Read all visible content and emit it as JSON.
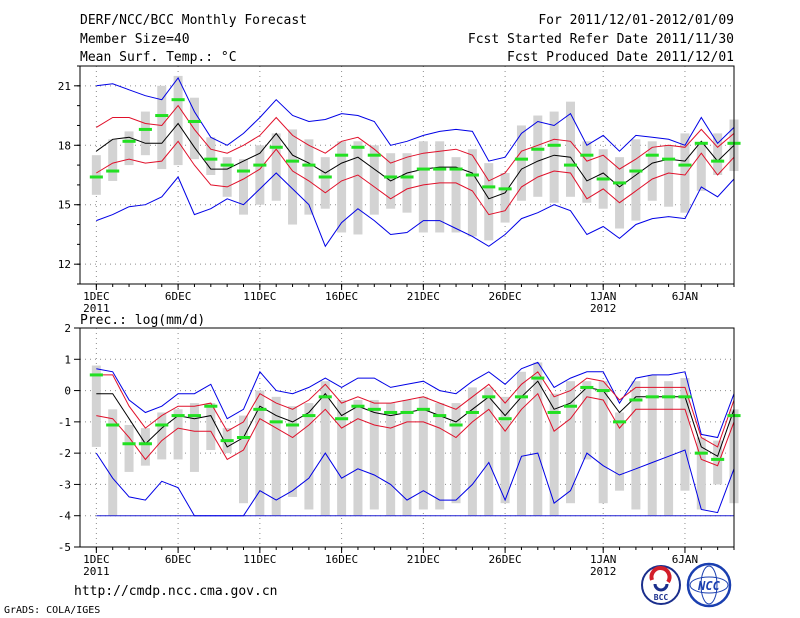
{
  "header": {
    "title": "DERF/NCC/BCC Monthly Forecast",
    "member_size": "Member Size=40",
    "variable": "Mean Surf. Temp.: °C",
    "forecast_period": "For 2011/12/01-2012/01/09",
    "fcst_started": "Fcst Started Refer Date 2011/11/30",
    "fcst_produced": "Fcst Produced Date 2011/12/01"
  },
  "footer": {
    "url": "http://cmdp.ncc.cma.gov.cn",
    "grads_credit": "GrADS: COLA/IGES",
    "logo_bcc_label": "BCC",
    "logo_ncc_label": "NCC"
  },
  "colors": {
    "box": "#d3d3d3",
    "median": "#22e022",
    "mean": "#000000",
    "std_band": "#e0102a",
    "envelope": "#0000e6",
    "grid": "#8c8c8c",
    "floor": "#1e1ed2"
  },
  "chart_data": [
    {
      "id": "temperature",
      "type": "line",
      "ylabel": "Mean Surf. Temp.: °C",
      "ylim": [
        11,
        22
      ],
      "yticks": [
        12,
        15,
        18,
        21
      ],
      "xlim": [
        0,
        40
      ],
      "xticks": [
        {
          "x": 1,
          "label": "1DEC",
          "sublabel": "2011"
        },
        {
          "x": 6,
          "label": "6DEC",
          "sublabel": ""
        },
        {
          "x": 11,
          "label": "11DEC",
          "sublabel": ""
        },
        {
          "x": 16,
          "label": "16DEC",
          "sublabel": ""
        },
        {
          "x": 21,
          "label": "21DEC",
          "sublabel": ""
        },
        {
          "x": 26,
          "label": "26DEC",
          "sublabel": ""
        },
        {
          "x": 32,
          "label": "1JAN",
          "sublabel": "2012"
        },
        {
          "x": 37,
          "label": "6JAN",
          "sublabel": ""
        }
      ],
      "grid": true,
      "days": [
        1,
        2,
        3,
        4,
        5,
        6,
        7,
        8,
        9,
        10,
        11,
        12,
        13,
        14,
        15,
        16,
        17,
        18,
        19,
        20,
        21,
        22,
        23,
        24,
        25,
        26,
        27,
        28,
        29,
        30,
        31,
        32,
        33,
        34,
        35,
        36,
        37,
        38,
        39,
        40
      ],
      "box_low": [
        15.5,
        16.2,
        17.0,
        17.5,
        16.8,
        17.0,
        17.3,
        16.5,
        15.4,
        14.5,
        15.0,
        15.2,
        14.0,
        14.5,
        14.8,
        13.6,
        13.5,
        14.5,
        14.8,
        14.6,
        13.6,
        13.6,
        13.6,
        13.4,
        13.2,
        14.1,
        15.2,
        15.4,
        15.1,
        15.4,
        15.1,
        14.8,
        13.8,
        14.2,
        15.2,
        14.9,
        14.6,
        15.7,
        16.5,
        16.7
      ],
      "box_high": [
        17.5,
        18.3,
        18.7,
        19.7,
        21.0,
        21.5,
        20.4,
        18.4,
        17.4,
        17.3,
        18.0,
        18.6,
        18.8,
        18.3,
        17.4,
        18.2,
        18.2,
        18.0,
        17.6,
        17.6,
        18.2,
        18.2,
        17.4,
        17.8,
        17.1,
        16.6,
        19.0,
        19.5,
        19.7,
        20.2,
        18.2,
        17.8,
        17.4,
        18.3,
        18.2,
        18.0,
        18.6,
        18.1,
        18.6,
        19.3
      ],
      "median": [
        16.4,
        16.7,
        18.2,
        18.8,
        19.5,
        20.3,
        19.2,
        17.3,
        17.0,
        16.7,
        17.0,
        17.9,
        17.2,
        17.0,
        16.4,
        17.5,
        17.9,
        17.5,
        16.4,
        16.4,
        16.8,
        16.8,
        16.8,
        16.5,
        15.9,
        15.8,
        17.3,
        17.8,
        18.0,
        17.0,
        17.5,
        16.3,
        16.1,
        16.7,
        17.5,
        17.3,
        17.0,
        18.1,
        17.2,
        18.1
      ],
      "mean": [
        17.7,
        18.3,
        18.4,
        18.1,
        18.1,
        19.1,
        17.9,
        16.8,
        16.8,
        17.2,
        17.6,
        18.6,
        17.5,
        17.1,
        16.6,
        17.1,
        17.4,
        16.8,
        16.2,
        16.6,
        16.8,
        16.9,
        16.9,
        16.6,
        15.3,
        15.6,
        16.8,
        17.2,
        17.5,
        17.4,
        16.2,
        16.6,
        15.9,
        16.5,
        17.1,
        17.3,
        17.2,
        18.2,
        17.2,
        18.0
      ],
      "std_high": [
        18.9,
        19.4,
        19.4,
        19.1,
        19.0,
        20.0,
        18.8,
        17.8,
        17.6,
        18.0,
        18.5,
        19.4,
        18.5,
        18.0,
        17.6,
        18.2,
        18.4,
        17.8,
        17.1,
        17.4,
        17.6,
        17.7,
        17.8,
        17.5,
        16.2,
        16.6,
        17.7,
        18.0,
        18.3,
        18.2,
        17.2,
        17.5,
        16.8,
        17.3,
        17.9,
        18.0,
        17.9,
        18.8,
        17.9,
        18.6
      ],
      "std_low": [
        16.6,
        17.1,
        17.3,
        17.1,
        17.2,
        18.2,
        17.0,
        16.0,
        15.9,
        16.3,
        16.8,
        17.8,
        16.7,
        16.2,
        15.6,
        16.2,
        16.5,
        15.9,
        15.3,
        15.8,
        16.0,
        16.1,
        16.1,
        15.7,
        14.5,
        14.7,
        15.9,
        16.4,
        16.7,
        16.6,
        15.3,
        15.8,
        15.1,
        15.7,
        16.3,
        16.6,
        16.5,
        17.6,
        16.5,
        17.4
      ],
      "env_high": [
        21.0,
        21.1,
        20.8,
        20.5,
        20.3,
        21.4,
        19.7,
        18.4,
        18.0,
        18.6,
        19.4,
        20.3,
        19.5,
        19.2,
        19.3,
        19.6,
        19.5,
        19.2,
        18.0,
        18.2,
        18.5,
        18.7,
        18.8,
        18.7,
        17.2,
        17.4,
        18.6,
        19.2,
        19.0,
        19.6,
        18.0,
        18.5,
        17.7,
        18.5,
        18.4,
        18.3,
        18.0,
        19.4,
        18.1,
        18.9
      ],
      "env_low": [
        14.2,
        14.5,
        14.9,
        15.0,
        15.4,
        16.4,
        14.5,
        14.8,
        15.3,
        15.0,
        15.8,
        16.6,
        15.8,
        15.0,
        12.9,
        14.1,
        14.8,
        14.2,
        13.5,
        13.6,
        14.2,
        14.2,
        13.8,
        13.4,
        12.9,
        13.5,
        14.3,
        14.6,
        15.0,
        14.7,
        13.5,
        13.9,
        13.3,
        14.0,
        14.3,
        14.4,
        14.3,
        15.9,
        15.4,
        16.3
      ]
    },
    {
      "id": "precipitation",
      "type": "line",
      "ylabel": "Prec.: log(mm/d)",
      "ylim": [
        -5,
        2
      ],
      "yticks": [
        -5,
        -4,
        -3,
        -2,
        -1,
        0,
        1,
        2
      ],
      "floor_value": -4,
      "xlim": [
        0,
        40
      ],
      "xticks": [
        {
          "x": 1,
          "label": "1DEC",
          "sublabel": "2011"
        },
        {
          "x": 6,
          "label": "6DEC",
          "sublabel": ""
        },
        {
          "x": 11,
          "label": "11DEC",
          "sublabel": ""
        },
        {
          "x": 16,
          "label": "16DEC",
          "sublabel": ""
        },
        {
          "x": 21,
          "label": "21DEC",
          "sublabel": ""
        },
        {
          "x": 26,
          "label": "26DEC",
          "sublabel": ""
        },
        {
          "x": 32,
          "label": "1JAN",
          "sublabel": "2012"
        },
        {
          "x": 37,
          "label": "6JAN",
          "sublabel": ""
        }
      ],
      "grid": true,
      "days": [
        1,
        2,
        3,
        4,
        5,
        6,
        7,
        8,
        9,
        10,
        11,
        12,
        13,
        14,
        15,
        16,
        17,
        18,
        19,
        20,
        21,
        22,
        23,
        24,
        25,
        26,
        27,
        28,
        29,
        30,
        31,
        32,
        33,
        34,
        35,
        36,
        37,
        38,
        39,
        40
      ],
      "box_low": [
        -1.8,
        -4.0,
        -2.6,
        -2.4,
        -2.2,
        -2.2,
        -2.6,
        -1.9,
        -2.0,
        -3.6,
        -4.0,
        -4.0,
        -3.4,
        -3.8,
        -4.0,
        -4.0,
        -4.0,
        -3.8,
        -4.0,
        -4.0,
        -3.8,
        -3.8,
        -3.6,
        -4.0,
        -4.0,
        -3.6,
        -4.0,
        -4.0,
        -4.0,
        -3.6,
        -2.2,
        -3.6,
        -3.2,
        -3.8,
        -4.0,
        -4.0,
        -3.2,
        -3.8,
        -3.0,
        -3.6
      ],
      "box_high": [
        0.8,
        -0.6,
        -1.1,
        -1.2,
        -0.7,
        -0.6,
        -0.4,
        -0.4,
        -1.2,
        -0.8,
        0.0,
        -0.2,
        -0.5,
        -0.4,
        0.3,
        -0.3,
        -0.3,
        -0.3,
        -0.4,
        -0.3,
        -0.2,
        -0.4,
        -0.4,
        0.1,
        0.1,
        -0.2,
        0.6,
        0.9,
        -0.1,
        0.3,
        0.3,
        0.3,
        -0.7,
        0.3,
        0.5,
        0.3,
        0.4,
        -1.5,
        -1.6,
        -0.6
      ],
      "median": [
        0.5,
        -1.1,
        -1.7,
        -1.7,
        -1.1,
        -0.8,
        -0.8,
        -0.5,
        -1.6,
        -1.5,
        -0.6,
        -1.0,
        -1.1,
        -0.8,
        -0.2,
        -0.9,
        -0.5,
        -0.6,
        -0.7,
        -0.7,
        -0.6,
        -0.8,
        -1.1,
        -0.7,
        -0.2,
        -0.9,
        -0.2,
        0.4,
        -0.7,
        -0.5,
        0.1,
        0.0,
        -1.0,
        -0.3,
        -0.2,
        -0.2,
        -0.2,
        -2.0,
        -2.2,
        -0.8
      ],
      "mean": [
        -0.1,
        -0.1,
        -0.9,
        -1.7,
        -1.2,
        -0.8,
        -0.9,
        -0.8,
        -1.8,
        -1.5,
        -0.5,
        -0.8,
        -1.0,
        -0.7,
        -0.1,
        -0.8,
        -0.5,
        -0.7,
        -0.8,
        -0.7,
        -0.6,
        -0.8,
        -1.0,
        -0.6,
        -0.2,
        -0.8,
        -0.2,
        0.3,
        -0.6,
        -0.4,
        0.1,
        0.0,
        -0.7,
        -0.2,
        -0.2,
        -0.2,
        -0.2,
        -1.8,
        -2.1,
        -0.6
      ],
      "std_high": [
        0.5,
        0.5,
        -0.5,
        -1.2,
        -0.8,
        -0.5,
        -0.5,
        -0.4,
        -1.3,
        -1.0,
        -0.1,
        -0.4,
        -0.6,
        -0.3,
        0.2,
        -0.4,
        -0.2,
        -0.4,
        -0.4,
        -0.3,
        -0.2,
        -0.4,
        -0.6,
        -0.2,
        0.2,
        -0.4,
        0.2,
        0.6,
        -0.2,
        0.0,
        0.4,
        0.3,
        -0.3,
        0.1,
        0.1,
        0.1,
        0.1,
        -1.5,
        -1.8,
        -0.3
      ],
      "std_low": [
        -0.8,
        -0.9,
        -1.5,
        -2.2,
        -1.6,
        -1.2,
        -1.3,
        -1.3,
        -2.2,
        -1.9,
        -0.9,
        -1.2,
        -1.5,
        -1.1,
        -0.6,
        -1.2,
        -0.9,
        -1.1,
        -1.2,
        -1.0,
        -1.0,
        -1.2,
        -1.5,
        -1.0,
        -0.6,
        -1.3,
        -0.6,
        -0.1,
        -1.3,
        -0.9,
        -0.2,
        -0.3,
        -1.2,
        -0.6,
        -0.6,
        -0.6,
        -0.6,
        -2.2,
        -2.4,
        -1.0
      ],
      "env_high": [
        0.7,
        0.6,
        -0.3,
        -0.7,
        -0.5,
        -0.1,
        -0.1,
        0.2,
        -0.9,
        -0.6,
        0.6,
        0.0,
        -0.1,
        0.1,
        0.4,
        0.1,
        0.4,
        0.4,
        0.1,
        0.2,
        0.3,
        0.0,
        -0.1,
        0.3,
        0.6,
        0.2,
        0.7,
        0.9,
        0.1,
        0.4,
        0.6,
        0.6,
        -0.4,
        0.4,
        0.5,
        0.5,
        0.6,
        -1.4,
        -1.5,
        -0.1
      ],
      "env_low": [
        -2.0,
        -2.8,
        -3.4,
        -3.5,
        -2.9,
        -3.1,
        -4.0,
        -4.0,
        -4.0,
        -4.0,
        -3.2,
        -3.5,
        -3.2,
        -2.8,
        -2.0,
        -2.8,
        -2.5,
        -2.7,
        -3.0,
        -3.5,
        -3.2,
        -3.5,
        -3.5,
        -3.0,
        -2.3,
        -3.5,
        -2.1,
        -2.0,
        -3.6,
        -3.2,
        -2.0,
        -2.4,
        -2.7,
        -2.5,
        -2.3,
        -2.1,
        -1.9,
        -3.8,
        -3.9,
        -2.5
      ]
    }
  ]
}
